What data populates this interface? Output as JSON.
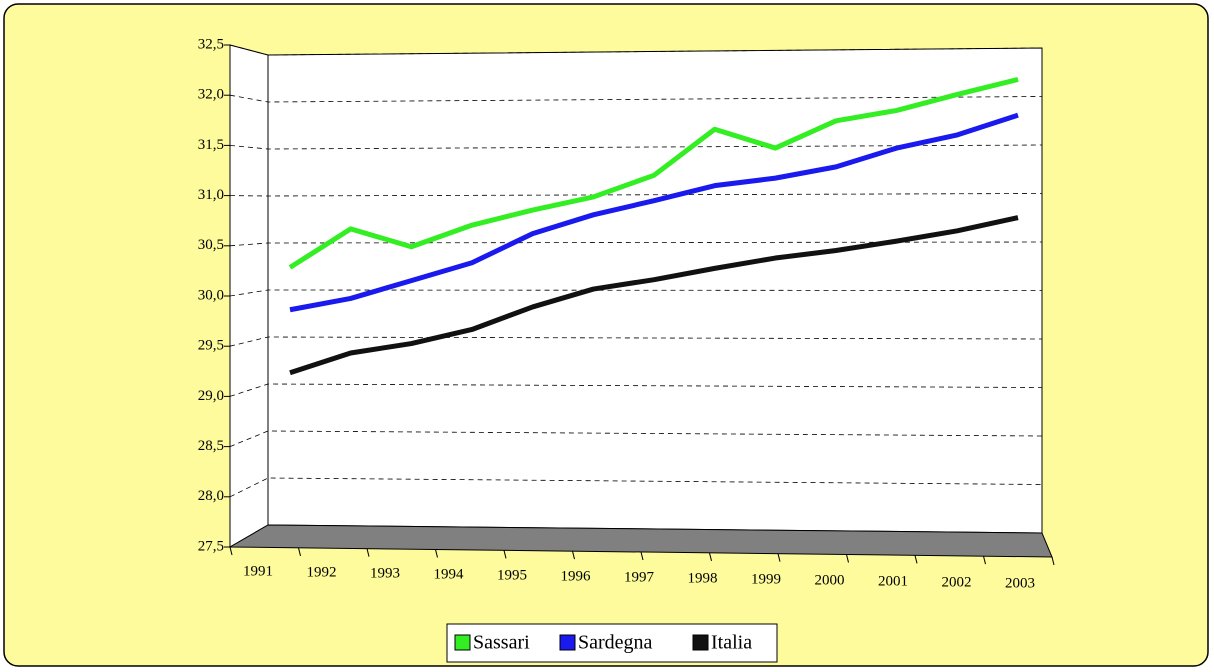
{
  "chart_data": {
    "type": "line",
    "categories": [
      "1991",
      "1992",
      "1993",
      "1994",
      "1995",
      "1996",
      "1997",
      "1998",
      "1999",
      "2000",
      "2001",
      "2002",
      "2003"
    ],
    "series": [
      {
        "name": "Sassari",
        "color": "#33ee22",
        "values": [
          30.24,
          30.65,
          30.46,
          30.69,
          30.85,
          30.99,
          31.22,
          31.71,
          31.51,
          31.8,
          31.91,
          32.08,
          32.24
        ]
      },
      {
        "name": "Sardegna",
        "color": "#1a1aee",
        "values": [
          29.79,
          29.91,
          30.1,
          30.29,
          30.6,
          30.8,
          30.95,
          31.11,
          31.19,
          31.31,
          31.51,
          31.65,
          31.86
        ]
      },
      {
        "name": "Italia",
        "color": "#111111",
        "values": [
          29.12,
          29.33,
          29.43,
          29.58,
          29.82,
          30.01,
          30.11,
          30.23,
          30.34,
          30.42,
          30.52,
          30.63,
          30.77
        ]
      }
    ],
    "ylim": [
      27.5,
      32.5
    ],
    "yticks": [
      {
        "value": 27.5,
        "label": "27,5"
      },
      {
        "value": 28,
        "label": "28,0"
      },
      {
        "value": 28.5,
        "label": "28,5"
      },
      {
        "value": 29,
        "label": "29,0"
      },
      {
        "value": 29.5,
        "label": "29,5"
      },
      {
        "value": 30,
        "label": "30,0"
      },
      {
        "value": 30.5,
        "label": "30,5"
      },
      {
        "value": 31,
        "label": "31,0"
      },
      {
        "value": 31.5,
        "label": "31,5"
      },
      {
        "value": 32,
        "label": "32,0"
      },
      {
        "value": 32.5,
        "label": "32,5"
      }
    ],
    "grid": true,
    "legend": "bottom"
  }
}
